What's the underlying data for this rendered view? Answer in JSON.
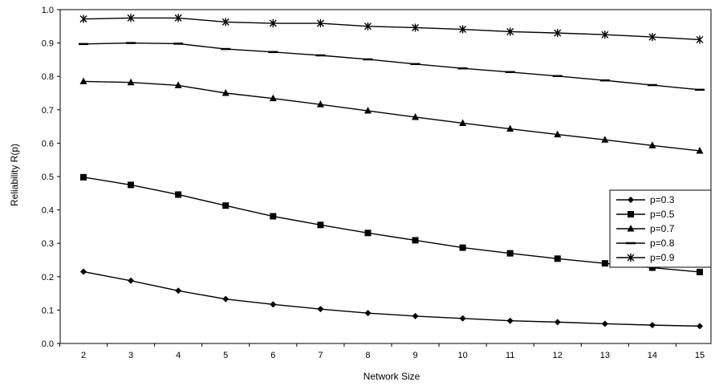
{
  "chart_data": {
    "type": "line",
    "title": "",
    "xlabel": "Network Size",
    "ylabel": "Reliability R(p)",
    "x": [
      2,
      3,
      4,
      5,
      6,
      7,
      8,
      9,
      10,
      11,
      12,
      13,
      14,
      15
    ],
    "ylim": [
      0.0,
      1.0
    ],
    "yticks": [
      "0.0",
      "0.1",
      "0.2",
      "0.3",
      "0.4",
      "0.5",
      "0.6",
      "0.7",
      "0.8",
      "0.9",
      "1.0"
    ],
    "xticks": [
      "2",
      "3",
      "4",
      "5",
      "6",
      "7",
      "8",
      "9",
      "10",
      "11",
      "12",
      "13",
      "14",
      "15"
    ],
    "grid": false,
    "legend_position": "right",
    "series": [
      {
        "name": "p=0.3",
        "marker": "diamond",
        "values": [
          0.215,
          0.188,
          0.158,
          0.133,
          0.117,
          0.103,
          0.091,
          0.082,
          0.075,
          0.068,
          0.064,
          0.059,
          0.055,
          0.052
        ]
      },
      {
        "name": "p=0.5",
        "marker": "square",
        "values": [
          0.498,
          0.475,
          0.446,
          0.413,
          0.381,
          0.355,
          0.331,
          0.309,
          0.287,
          0.27,
          0.254,
          0.24,
          0.227,
          0.214
        ]
      },
      {
        "name": "p=0.7",
        "marker": "triangle",
        "values": [
          0.785,
          0.782,
          0.773,
          0.75,
          0.734,
          0.716,
          0.697,
          0.678,
          0.66,
          0.643,
          0.626,
          0.61,
          0.593,
          0.577
        ]
      },
      {
        "name": "p=0.8",
        "marker": "dash",
        "values": [
          0.897,
          0.9,
          0.898,
          0.882,
          0.873,
          0.863,
          0.851,
          0.837,
          0.824,
          0.813,
          0.801,
          0.788,
          0.774,
          0.76
        ]
      },
      {
        "name": "p=0.9",
        "marker": "star",
        "values": [
          0.972,
          0.975,
          0.975,
          0.963,
          0.959,
          0.959,
          0.95,
          0.946,
          0.941,
          0.934,
          0.93,
          0.925,
          0.918,
          0.91
        ]
      }
    ]
  }
}
